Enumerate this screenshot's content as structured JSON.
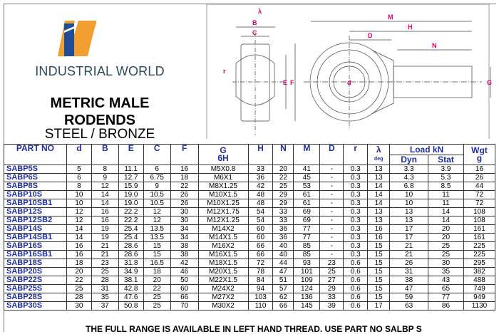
{
  "brand": {
    "name": "INDUSTRIAL WORLD",
    "colors": {
      "blue": "#1f4e96",
      "orange": "#f0a030"
    }
  },
  "title": {
    "line1": "METRIC MALE",
    "line2": "RODENDS",
    "subtitle": "STEEL / BRONZE"
  },
  "drawing_labels": {
    "angle": "λ",
    "B": "B",
    "C": "C",
    "r": "r",
    "E": "E",
    "F": "F",
    "d": "d",
    "M": "M",
    "H": "H",
    "D": "D",
    "N": "N",
    "G": "G"
  },
  "table": {
    "headers": {
      "part": "PART NO",
      "d": "d",
      "B": "B",
      "E": "E",
      "C": "C",
      "F": "F",
      "G": "G",
      "G_sub": "6H",
      "H": "H",
      "N": "N",
      "M": "M",
      "D": "D",
      "r": "r",
      "angle": "λ",
      "angle_sub": "deg",
      "load": "Load kN",
      "dyn": "Dyn",
      "stat": "Stat",
      "wgt": "Wgt",
      "wgt_sub": "g"
    },
    "rows": [
      [
        "SABP5S",
        "5",
        "8",
        "11.1",
        "6",
        "16",
        "M5X0.8",
        "33",
        "20",
        "41",
        "-",
        "0.3",
        "13",
        "3.3",
        "3.9",
        "16"
      ],
      [
        "SABP6S",
        "6",
        "9",
        "12.7",
        "6.75",
        "18",
        "M6X1",
        "36",
        "22",
        "45",
        "-",
        "0.3",
        "13",
        "4.3",
        "5.3",
        "26"
      ],
      [
        "SABP8S",
        "8",
        "12",
        "15.9",
        "9",
        "22",
        "M8X1.25",
        "42",
        "25",
        "53",
        "-",
        "0.3",
        "14",
        "6.8",
        "8.5",
        "44"
      ],
      [
        "SABP10S",
        "10",
        "14",
        "19.0",
        "10.5",
        "26",
        "M10X1.5",
        "48",
        "29",
        "61",
        "-",
        "0.3",
        "14",
        "10",
        "11",
        "72"
      ],
      [
        "SABP10SB1",
        "10",
        "14",
        "19.0",
        "10.5",
        "26",
        "M10X1.25",
        "48",
        "29",
        "61",
        "-",
        "0.3",
        "14",
        "10",
        "11",
        "72"
      ],
      [
        "SABP12S",
        "12",
        "16",
        "22.2",
        "12",
        "30",
        "M12X1.75",
        "54",
        "33",
        "69",
        "-",
        "0.3",
        "13",
        "13",
        "14",
        "108"
      ],
      [
        "SABP12SB2",
        "12",
        "16",
        "22.2",
        "12",
        "30",
        "M12X1.25",
        "54",
        "33",
        "69",
        "-",
        "0.3",
        "13",
        "13",
        "14",
        "108"
      ],
      [
        "SABP14S",
        "14",
        "19",
        "25.4",
        "13.5",
        "34",
        "M14X2",
        "60",
        "36",
        "77",
        "-",
        "0.3",
        "16",
        "17",
        "20",
        "161"
      ],
      [
        "SABP14SB1",
        "14",
        "19",
        "25.4",
        "13.5",
        "34",
        "M14X1.5",
        "60",
        "36",
        "77",
        "-",
        "0.3",
        "16",
        "17",
        "20",
        "161"
      ],
      [
        "SABP16S",
        "16",
        "21",
        "28.6",
        "15",
        "38",
        "M16X2",
        "66",
        "40",
        "85",
        "-",
        "0.3",
        "15",
        "21",
        "25",
        "225"
      ],
      [
        "SABP16SB1",
        "16",
        "21",
        "28.6",
        "15",
        "38",
        "M16X1.5",
        "66",
        "40",
        "85",
        "-",
        "0.3",
        "15",
        "21",
        "25",
        "225"
      ],
      [
        "SABP18S",
        "18",
        "23",
        "31.8",
        "16.5",
        "42",
        "M18X1.5",
        "72",
        "44",
        "93",
        "23",
        "0.6",
        "15",
        "26",
        "30",
        "295"
      ],
      [
        "SABP20S",
        "20",
        "25",
        "34.9",
        "18",
        "46",
        "M20X1.5",
        "78",
        "47",
        "101",
        "25",
        "0.6",
        "15",
        "31",
        "35",
        "382"
      ],
      [
        "SABP22S",
        "22",
        "28",
        "38.1",
        "20",
        "50",
        "M22X1.5",
        "84",
        "51",
        "109",
        "27",
        "0.6",
        "15",
        "38",
        "43",
        "488"
      ],
      [
        "SABP25S",
        "25",
        "31",
        "42.8",
        "22",
        "60",
        "M24X2",
        "94",
        "57",
        "124",
        "29",
        "0.6",
        "15",
        "47",
        "65",
        "749"
      ],
      [
        "SABP28S",
        "28",
        "35",
        "47.6",
        "25",
        "66",
        "M27X2",
        "103",
        "62",
        "136",
        "33",
        "0.6",
        "15",
        "59",
        "77",
        "949"
      ],
      [
        "SABP30S",
        "30",
        "37",
        "50.8",
        "25",
        "70",
        "M30X2",
        "110",
        "66",
        "145",
        "39",
        "0.6",
        "17",
        "63",
        "86",
        "1130"
      ]
    ]
  },
  "footer": "THE FULL RANGE IS AVAILABLE IN LEFT HAND THREAD. USE PART NO SALBP S"
}
